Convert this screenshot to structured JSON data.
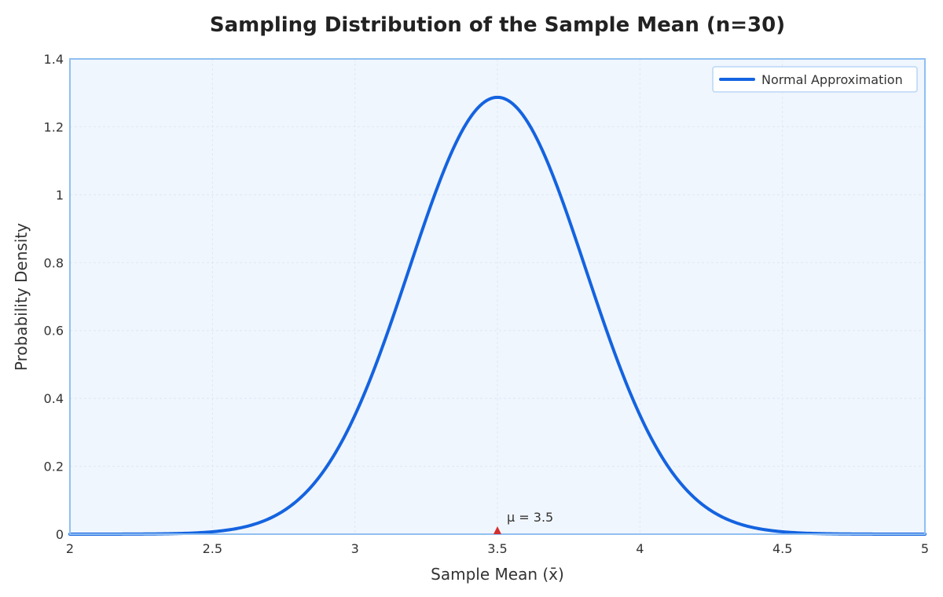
{
  "chart_data": {
    "type": "line",
    "title": "Sampling Distribution of the Sample Mean (n=30)",
    "xlabel": "Sample Mean (x̄)",
    "ylabel": "Probability Density",
    "xlim": [
      2,
      5
    ],
    "ylim": [
      0,
      1.4
    ],
    "x_ticks": [
      2,
      2.5,
      3,
      3.5,
      4,
      4.5,
      5
    ],
    "x_tick_labels": [
      "2",
      "2.5",
      "3",
      "3.5",
      "4",
      "4.5",
      "5"
    ],
    "y_ticks": [
      0,
      0.2,
      0.4,
      0.6,
      0.8,
      1,
      1.2,
      1.4
    ],
    "y_tick_labels": [
      "0",
      "0.2",
      "0.4",
      "0.6",
      "0.8",
      "1",
      "1.2",
      "1.4"
    ],
    "grid": true,
    "legend_position": "top-right",
    "series": [
      {
        "name": "Normal Approximation",
        "color": "#1463e0",
        "distribution": "normal",
        "mean": 3.5,
        "sd": 0.31,
        "x": [
          2,
          2.25,
          2.5,
          2.6,
          2.7,
          2.8,
          2.9,
          3,
          3.1,
          3.2,
          3.3,
          3.4,
          3.5,
          3.6,
          3.7,
          3.8,
          3.9,
          4,
          4.1,
          4.2,
          4.3,
          4.4,
          4.5,
          4.75,
          5
        ],
        "y": [
          0,
          0.002,
          0.007,
          0.019,
          0.046,
          0.099,
          0.193,
          0.334,
          0.514,
          0.805,
          1.04,
          1.23,
          1.287,
          1.23,
          1.04,
          0.805,
          0.514,
          0.334,
          0.193,
          0.099,
          0.046,
          0.019,
          0.007,
          0.002,
          0
        ]
      }
    ],
    "annotations": [
      {
        "text": "μ = 3.5",
        "x": 3.5,
        "y": 0,
        "marker": "triangle",
        "marker_color": "#d32f2f"
      }
    ],
    "colors": {
      "plot_background": "#f0f6fd",
      "plot_border": "#90bff2",
      "grid": "#dde8f5",
      "legend_border": "#b9d6f6"
    }
  }
}
